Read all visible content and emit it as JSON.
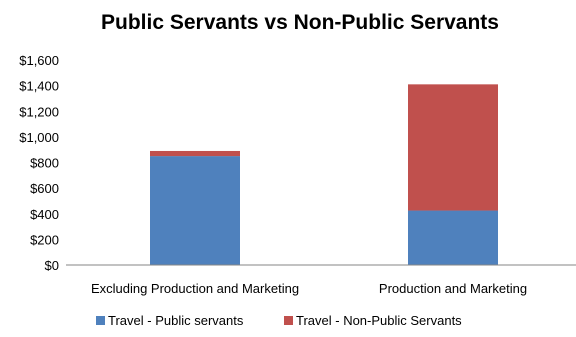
{
  "chart_data": {
    "type": "bar",
    "stacked": true,
    "title": "Public Servants vs Non-Public Servants",
    "xlabel": "",
    "ylabel": "",
    "categories": [
      "Excluding Production and Marketing",
      "Production and Marketing"
    ],
    "series": [
      {
        "name": "Travel - Public servants",
        "color": "#4F81BD",
        "values": [
          850,
          425
        ]
      },
      {
        "name": "Travel - Non-Public Servants",
        "color": "#C0504D",
        "values": [
          40,
          985
        ]
      }
    ],
    "ylim": [
      0,
      1600
    ],
    "y_ticks": [
      "$0",
      "$200",
      "$400",
      "$600",
      "$800",
      "$1,000",
      "$1,200",
      "$1,400",
      "$1,600"
    ],
    "y_tick_values": [
      0,
      200,
      400,
      600,
      800,
      1000,
      1200,
      1400,
      1600
    ],
    "grid": false,
    "legend_position": "bottom"
  }
}
